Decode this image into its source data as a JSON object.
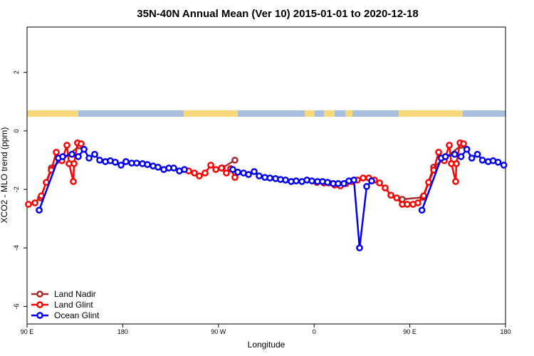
{
  "chart_data": {
    "type": "line",
    "title": "35N-40N Annual Mean (Ver 10)   2015-01-01 to 2020-12-18",
    "x_label": "Longitude",
    "y_label": "XCO2 - MLO trend (ppm)",
    "xlim": [
      90,
      540
    ],
    "ylim": [
      -6.6,
      3.55
    ],
    "xticks": [
      {
        "value": 90,
        "label": "90 E"
      },
      180,
      {
        "value": 270,
        "label": "90 W"
      },
      {
        "value": 360,
        "label": "0"
      },
      {
        "value": 450,
        "label": "90 E"
      },
      {
        "value": 540,
        "label": "180"
      }
    ],
    "yticks": [
      2,
      0,
      -2,
      -4,
      -6
    ],
    "grid": false,
    "legend": "bottom-left",
    "series": [
      {
        "name": "Land Nadir",
        "color": "#a52a2a",
        "x": [
          102.7,
          112.8,
          139.6,
          null,
          273.5,
          285.5,
          null,
          442.9,
          462.3,
          472.4,
          498.5
        ],
        "values": [
          -2.29,
          -1.27,
          -0.51,
          null,
          -1.27,
          -1.0,
          null,
          -2.34,
          -2.27,
          -1.24,
          -0.49
        ]
      },
      {
        "name": "Land Glint",
        "color": "#ff0000",
        "x": [
          91.3,
          97.4,
          103.4,
          108.1,
          112.8,
          117.5,
          122.8,
          127.5,
          129.5,
          133.5,
          134.2,
          137.5,
          140.9,
          null,
          242,
          247.4,
          252,
          257.4,
          262.8,
          267.5,
          272.8,
          277.5,
          281.5,
          285.5,
          null,
          362.5,
          369.2,
          373.9,
          379.3,
          384.6,
          390,
          395.4,
          400.7,
          406.1,
          411.4,
          416.8,
          421.5,
          426.8,
          432.2,
          437.6,
          442.9,
          447.6,
          453,
          457.6,
          463,
          467.7,
          472.4,
          477.1,
          482.4,
          487.1,
          489.1,
          493.1,
          493.8,
          497.2,
          500.5
        ],
        "values": [
          -2.51,
          -2.46,
          -2.22,
          -1.76,
          -1.34,
          -0.73,
          -1.02,
          -0.49,
          -1.12,
          -1.73,
          -1.12,
          -0.41,
          -0.44,
          null,
          -1.37,
          -1.44,
          -1.54,
          -1.44,
          -1.17,
          -1.32,
          -1.27,
          -1.44,
          -1.29,
          -1.59,
          null,
          -1.76,
          -1.78,
          -1.78,
          -1.85,
          -1.88,
          -1.8,
          -1.73,
          -1.68,
          -1.61,
          -1.61,
          -1.68,
          -1.78,
          -1.95,
          -2.2,
          -2.29,
          -2.51,
          -2.51,
          -2.51,
          -2.46,
          -2.22,
          -1.76,
          -1.34,
          -0.73,
          -1.02,
          -0.49,
          -1.12,
          -1.73,
          -1.12,
          -0.41,
          -0.44
        ]
      },
      {
        "name": "Ocean Glint",
        "color": "#0000ee",
        "x": [
          101.4,
          119.5,
          123.5,
          132.2,
          138.2,
          143.6,
          148.3,
          153.6,
          158.3,
          163.7,
          168.3,
          173,
          178.4,
          183,
          188.4,
          193.1,
          198.5,
          203.2,
          208.5,
          213.2,
          218.6,
          223.3,
          228,
          233.3,
          238,
          null,
          283.5,
          288.2,
          293.6,
          298.3,
          303.6,
          308.3,
          313.7,
          318.4,
          323.7,
          328.4,
          333.1,
          338.4,
          343.1,
          348.5,
          353.2,
          357.9,
          363.2,
          367.9,
          372.6,
          378,
          382.6,
          388,
          392.7,
          397.4,
          402.7,
          409.4,
          414.1,
          null,
          461.4,
          479.5,
          483.5,
          492.2,
          498.2,
          503.6,
          508.3,
          513.6,
          518.3,
          523.7,
          528.3,
          533,
          538.4
        ],
        "values": [
          -2.71,
          -0.93,
          -0.88,
          -0.8,
          -0.88,
          -0.63,
          -0.93,
          -0.8,
          -1.0,
          -1.05,
          -1.02,
          -1.07,
          -1.17,
          -1.05,
          -1.1,
          -1.1,
          -1.12,
          -1.15,
          -1.2,
          -1.24,
          -1.32,
          -1.27,
          -1.27,
          -1.37,
          -1.32,
          null,
          -1.32,
          -1.41,
          -1.44,
          -1.49,
          -1.39,
          -1.54,
          -1.59,
          -1.61,
          -1.63,
          -1.66,
          -1.68,
          -1.73,
          -1.71,
          -1.73,
          -1.68,
          -1.71,
          -1.73,
          -1.73,
          -1.76,
          -1.8,
          -1.8,
          -1.8,
          -1.71,
          -1.68,
          -4.0,
          -1.9,
          -1.71,
          null,
          -2.71,
          -0.93,
          -0.88,
          -0.8,
          -0.88,
          -0.63,
          -0.93,
          -0.8,
          -1.0,
          -1.05,
          -1.02,
          -1.07,
          -1.17
        ]
      }
    ]
  }
}
